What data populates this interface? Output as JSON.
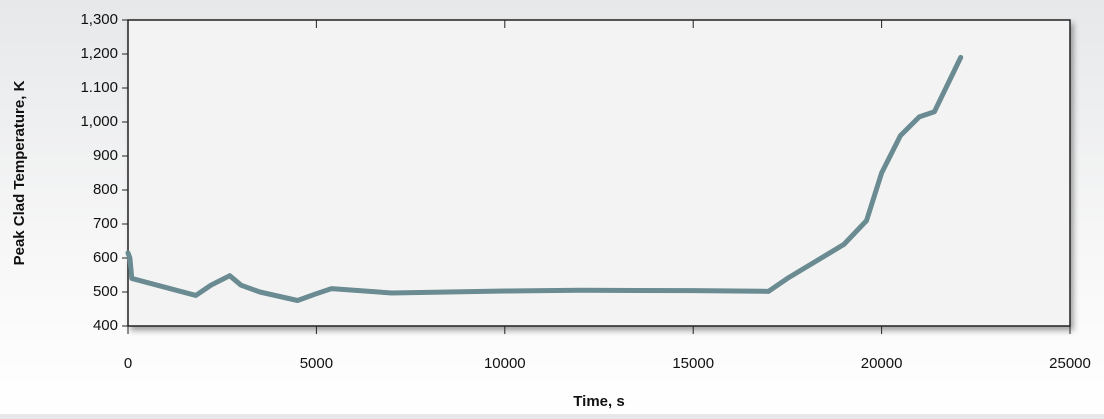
{
  "chart_data": {
    "type": "line",
    "xlabel": "Time, s",
    "ylabel": "Peak Clad Temperature, K",
    "x": [
      0,
      50,
      100,
      1800,
      2200,
      2700,
      3000,
      3500,
      4500,
      5000,
      5400,
      7000,
      10000,
      12000,
      15000,
      17000,
      17500,
      19000,
      19600,
      20000,
      20500,
      21000,
      21400,
      22100
    ],
    "series": [
      {
        "name": "Peak Clad Temperature",
        "color": "#6a8b92",
        "values": [
          615,
          600,
          540,
          490,
          520,
          548,
          520,
          500,
          475,
          495,
          510,
          497,
          503,
          505,
          504,
          502,
          540,
          640,
          710,
          850,
          960,
          1015,
          1030,
          1190
        ]
      }
    ],
    "xlim": [
      0,
      25000
    ],
    "xticks": [
      0,
      5000,
      10000,
      15000,
      20000,
      25000
    ],
    "ylim": [
      400,
      1300
    ],
    "yticks": [
      400,
      500,
      600,
      700,
      800,
      900,
      {
        "value": 1000,
        "label": "1,000"
      },
      {
        "value": 1100,
        "label": "1.100"
      },
      {
        "value": 1200,
        "label": "1,200"
      },
      {
        "value": 1300,
        "label": "1,300"
      }
    ]
  }
}
